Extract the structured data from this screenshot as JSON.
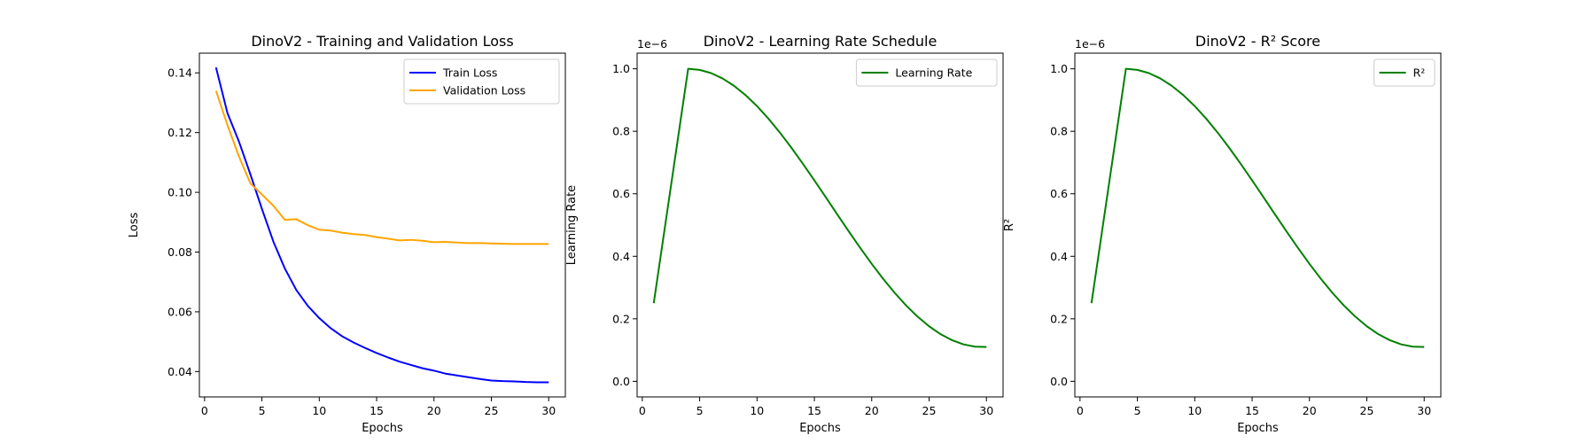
{
  "chart_data": [
    {
      "type": "line",
      "title": "DinoV2 - Training and Validation Loss",
      "xlabel": "Epochs",
      "ylabel": "Loss",
      "xlim": [
        -0.45,
        31.45
      ],
      "ylim": [
        0.0315,
        0.1466
      ],
      "xticks": [
        0,
        5,
        10,
        15,
        20,
        25,
        30
      ],
      "yticks": [
        0.04,
        0.06,
        0.08,
        0.1,
        0.12,
        0.14
      ],
      "ytick_labels": [
        "0.04",
        "0.06",
        "0.08",
        "0.10",
        "0.12",
        "0.14"
      ],
      "offset_text": "",
      "grid": false,
      "legend_position": "upper right",
      "x": [
        1,
        2,
        3,
        4,
        5,
        6,
        7,
        8,
        9,
        10,
        11,
        12,
        13,
        14,
        15,
        16,
        17,
        18,
        19,
        20,
        21,
        22,
        23,
        24,
        25,
        26,
        27,
        28,
        29,
        30
      ],
      "series": [
        {
          "name": "Train Loss",
          "color": "#0000ff",
          "values": [
            0.1418,
            0.1265,
            0.117,
            0.106,
            0.0945,
            0.0835,
            0.0745,
            0.0673,
            0.062,
            0.0579,
            0.0545,
            0.0518,
            0.0497,
            0.0479,
            0.0462,
            0.0447,
            0.0433,
            0.0422,
            0.0411,
            0.0403,
            0.0393,
            0.0387,
            0.0381,
            0.0375,
            0.037,
            0.0368,
            0.0367,
            0.0365,
            0.0364,
            0.0364
          ]
        },
        {
          "name": "Validation Loss",
          "color": "#ffa500",
          "values": [
            0.134,
            0.1225,
            0.112,
            0.103,
            0.0993,
            0.0955,
            0.0908,
            0.091,
            0.089,
            0.0875,
            0.0872,
            0.0865,
            0.086,
            0.0857,
            0.085,
            0.0845,
            0.0839,
            0.0841,
            0.0838,
            0.0833,
            0.0834,
            0.0832,
            0.083,
            0.083,
            0.0829,
            0.0828,
            0.0827,
            0.0827,
            0.0827,
            0.0827
          ]
        }
      ]
    },
    {
      "type": "line",
      "title": "DinoV2 - Learning Rate Schedule",
      "xlabel": "Epochs",
      "ylabel": "Learning Rate",
      "xlim": [
        -0.45,
        31.45
      ],
      "ylim": [
        -0.05,
        1.05
      ],
      "xticks": [
        0,
        5,
        10,
        15,
        20,
        25,
        30
      ],
      "yticks": [
        0.0,
        0.2,
        0.4,
        0.6,
        0.8,
        1.0
      ],
      "ytick_labels": [
        "0.0",
        "0.2",
        "0.4",
        "0.6",
        "0.8",
        "1.0"
      ],
      "offset_text": "1e−6",
      "grid": false,
      "legend_position": "upper right",
      "x": [
        1,
        2,
        3,
        4,
        5,
        6,
        7,
        8,
        9,
        10,
        11,
        12,
        13,
        14,
        15,
        16,
        17,
        18,
        19,
        20,
        21,
        22,
        23,
        24,
        25,
        26,
        27,
        28,
        29,
        30
      ],
      "series": [
        {
          "name": "Learning Rate",
          "color": "#008000",
          "values": [
            0.25,
            0.5,
            0.75,
            1.0,
            0.9965,
            0.9862,
            0.9691,
            0.9455,
            0.9159,
            0.8806,
            0.8404,
            0.7957,
            0.7474,
            0.6962,
            0.6431,
            0.5887,
            0.5339,
            0.4797,
            0.4267,
            0.3758,
            0.3277,
            0.2831,
            0.2426,
            0.2068,
            0.1761,
            0.1509,
            0.1316,
            0.1182,
            0.111,
            0.1098
          ]
        }
      ]
    },
    {
      "type": "line",
      "title": "DinoV2 - R² Score",
      "xlabel": "Epochs",
      "ylabel": "R²",
      "xlim": [
        -0.45,
        31.45
      ],
      "ylim": [
        -0.05,
        1.05
      ],
      "xticks": [
        0,
        5,
        10,
        15,
        20,
        25,
        30
      ],
      "yticks": [
        0.0,
        0.2,
        0.4,
        0.6,
        0.8,
        1.0
      ],
      "ytick_labels": [
        "0.0",
        "0.2",
        "0.4",
        "0.6",
        "0.8",
        "1.0"
      ],
      "offset_text": "1e−6",
      "grid": false,
      "legend_position": "upper right",
      "x": [
        1,
        2,
        3,
        4,
        5,
        6,
        7,
        8,
        9,
        10,
        11,
        12,
        13,
        14,
        15,
        16,
        17,
        18,
        19,
        20,
        21,
        22,
        23,
        24,
        25,
        26,
        27,
        28,
        29,
        30
      ],
      "series": [
        {
          "name": "R²",
          "color": "#008000",
          "values": [
            0.25,
            0.5,
            0.75,
            1.0,
            0.9965,
            0.9862,
            0.9691,
            0.9455,
            0.9159,
            0.8806,
            0.8404,
            0.7957,
            0.7474,
            0.6962,
            0.6431,
            0.5887,
            0.5339,
            0.4797,
            0.4267,
            0.3758,
            0.3277,
            0.2831,
            0.2426,
            0.2068,
            0.1761,
            0.1509,
            0.1316,
            0.1182,
            0.111,
            0.1098
          ]
        }
      ]
    }
  ]
}
